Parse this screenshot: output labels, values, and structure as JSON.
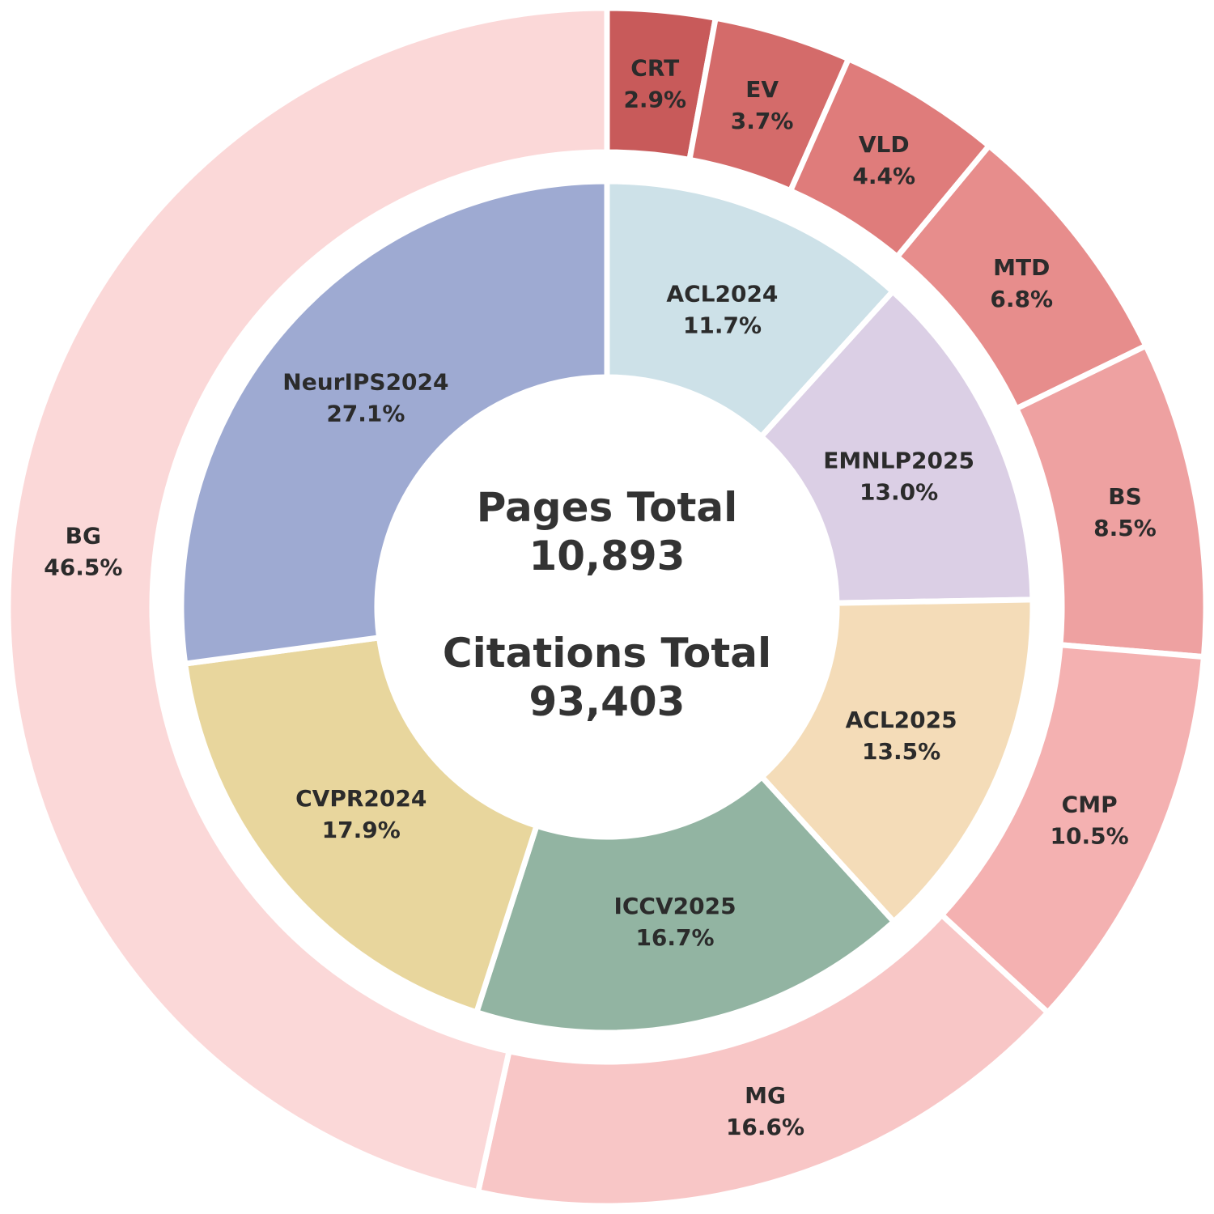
{
  "chart_data": {
    "type": "pie",
    "center": {
      "pages_label": "Pages Total",
      "pages_value": "10,893",
      "citations_label": "Citations Total",
      "citations_value": "93,403"
    },
    "inner_ring": [
      {
        "name": "ACL2024",
        "value": 11.7,
        "color": "#cde1e8"
      },
      {
        "name": "EMNLP2025",
        "value": 13.0,
        "color": "#dbcfe5"
      },
      {
        "name": "ACL2025",
        "value": 13.5,
        "color": "#f4dcb8"
      },
      {
        "name": "ICCV2025",
        "value": 16.7,
        "color": "#92b4a2"
      },
      {
        "name": "CVPR2024",
        "value": 17.9,
        "color": "#e8d69d"
      },
      {
        "name": "NeurIPS2024",
        "value": 27.1,
        "color": "#9eaad2"
      }
    ],
    "outer_ring": [
      {
        "name": "CRT",
        "value": 2.9,
        "color": "#c85a5a"
      },
      {
        "name": "EV",
        "value": 3.7,
        "color": "#d46b6a"
      },
      {
        "name": "VLD",
        "value": 4.4,
        "color": "#df7c7b"
      },
      {
        "name": "MTD",
        "value": 6.8,
        "color": "#e78d8c"
      },
      {
        "name": "BS",
        "value": 8.5,
        "color": "#eea1a1"
      },
      {
        "name": "CMP",
        "value": 10.5,
        "color": "#f4b1b1"
      },
      {
        "name": "MG",
        "value": 16.6,
        "color": "#f8c6c6"
      },
      {
        "name": "BG",
        "value": 46.5,
        "color": "#fbd8d8"
      }
    ]
  }
}
